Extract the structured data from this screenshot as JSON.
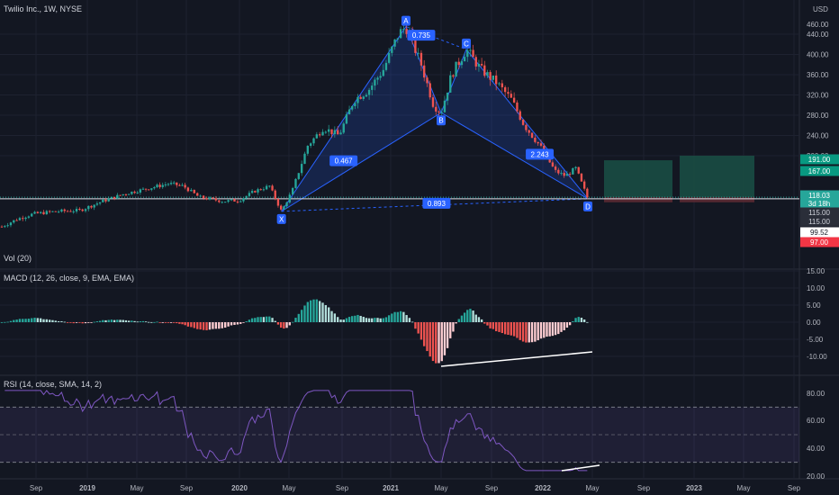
{
  "header": {
    "title": "Twilio Inc., 1W, NYSE",
    "currency": "USD"
  },
  "panes": {
    "volume_label": "Vol (20)",
    "macd_label": "MACD (12, 26, close, 9, EMA, EMA)",
    "rsi_label": "RSI (14, close, SMA, 14, 2)"
  },
  "colors": {
    "bg": "#131722",
    "up": "#26a69a",
    "down": "#ef5350",
    "pattern": "#2962ff",
    "rsi_line": "#7e57c2",
    "grid": "#1e2230",
    "text": "#b2b5be"
  },
  "chart_data": [
    {
      "type": "candlestick",
      "title": "Twilio Inc., 1W, NYSE",
      "x_ticks": [
        "Sep",
        "2019",
        "May",
        "Sep",
        "2020",
        "May",
        "Sep",
        "2021",
        "May",
        "Sep",
        "2022",
        "May",
        "Sep",
        "2023",
        "May",
        "Sep"
      ],
      "y_ticks": [
        200,
        240,
        280,
        320,
        360,
        400,
        440
      ],
      "ylim": [
        60,
        480
      ],
      "pattern_points": [
        {
          "label": "X",
          "t": 2020.28,
          "price": 90
        },
        {
          "label": "A",
          "t": 2021.1,
          "price": 455
        },
        {
          "label": "B",
          "t": 2021.33,
          "price": 285
        },
        {
          "label": "C",
          "t": 2021.5,
          "price": 410
        },
        {
          "label": "D",
          "t": 2022.3,
          "price": 115
        }
      ],
      "ratios": [
        {
          "text": "0.735",
          "t": 2021.2,
          "price": 438
        },
        {
          "text": "0.467",
          "t": 2020.68,
          "price": 190
        },
        {
          "text": "2.243",
          "t": 2021.98,
          "price": 203
        },
        {
          "text": "0.893",
          "t": 2021.3,
          "price": 106
        }
      ],
      "price_labels": [
        {
          "text": "191.00",
          "kind": "green"
        },
        {
          "text": "167.00",
          "kind": "green"
        },
        {
          "text": "118.03",
          "kind": "teal"
        },
        {
          "text": "3d 18h",
          "kind": "teal"
        },
        {
          "text": "115.00",
          "kind": "gray"
        },
        {
          "text": "115.00",
          "kind": "gray"
        },
        {
          "text": "99.52",
          "kind": "white"
        },
        {
          "text": "97.00",
          "kind": "red"
        }
      ],
      "horizontal_line": 115,
      "last_price": 118.03
    },
    {
      "type": "histogram",
      "title": "MACD (12, 26, close, 9, EMA, EMA)",
      "y_ticks": [
        "15.00",
        "10.00",
        "5.00",
        "0.00",
        "-5.00",
        "-10.00"
      ],
      "ylim": [
        -13,
        15
      ]
    },
    {
      "type": "line",
      "title": "RSI (14, close, SMA, 14, 2)",
      "y_ticks": [
        "80.00",
        "60.00",
        "40.00",
        "20.00"
      ],
      "ylim": [
        20,
        85
      ],
      "band": [
        30,
        70
      ]
    }
  ]
}
